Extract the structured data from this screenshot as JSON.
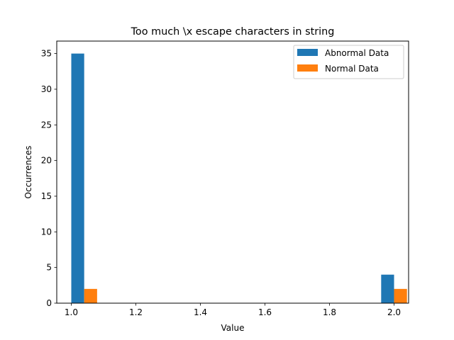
{
  "chart_data": {
    "type": "bar",
    "title": "Too much \\x escape characters in string",
    "xlabel": "Value",
    "ylabel": "Occurrences",
    "xlim": [
      0.955,
      2.045
    ],
    "ylim": [
      0,
      36.75
    ],
    "xticks": [
      "1.0",
      "1.2",
      "1.4",
      "1.6",
      "1.8",
      "2.0"
    ],
    "yticks": [
      "0",
      "5",
      "10",
      "15",
      "20",
      "25",
      "30",
      "35"
    ],
    "grid": false,
    "legend_position": "top-right",
    "bin_centers": [
      1.0,
      1.96
    ],
    "series": [
      {
        "name": "Abnormal Data",
        "color": "#1f77b4",
        "values": [
          35,
          4
        ]
      },
      {
        "name": "Normal Data",
        "color": "#ff7f0e",
        "values": [
          2,
          2
        ]
      }
    ]
  }
}
